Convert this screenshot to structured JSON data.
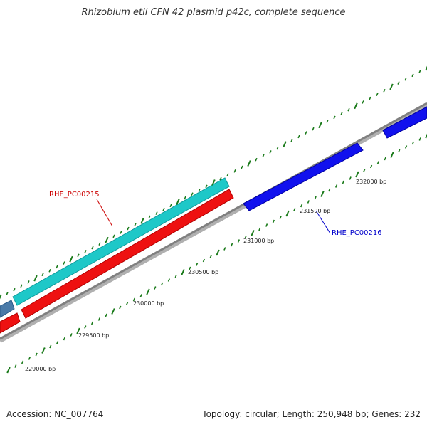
{
  "title": "Rhizobium etli CFN 42 plasmid p42c, complete sequence",
  "footer": {
    "accession": "Accession: NC_007764",
    "summary": "Topology: circular; Length: 250,948 bp; Genes: 232"
  },
  "scale_labels": [
    "229000 bp",
    "229500 bp",
    "230000 bp",
    "230500 bp",
    "231000 bp",
    "231500 bp",
    "232000 bp"
  ],
  "gene_labels": {
    "red": "RHE_PC00215",
    "blue": "RHE_PC00216"
  },
  "colors": {
    "backbone": "#808080",
    "tick": "#1a7a1a",
    "cyan_gene": "#1ec8c8",
    "red_gene": "#ee1111",
    "blue_gene": "#1111ee",
    "steel_gene": "#4a7aa8"
  }
}
